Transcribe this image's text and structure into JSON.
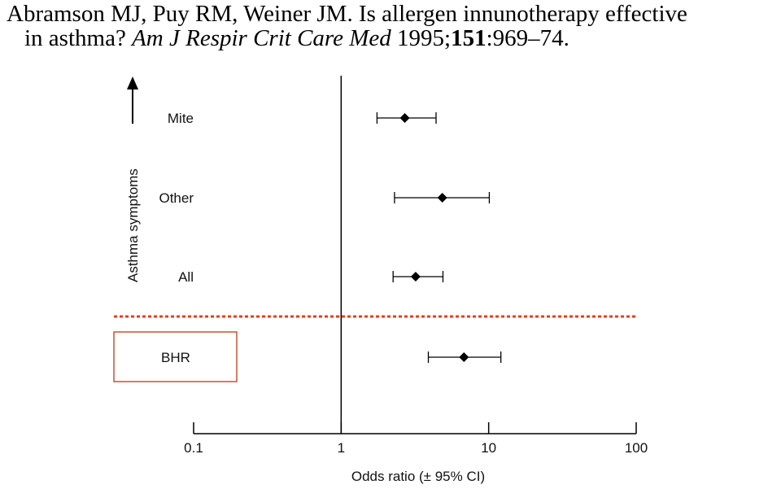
{
  "citation": {
    "authors_title": "Abramson MJ, Puy RM, Weiner JM. Is allergen innunotherapy effective",
    "line2_prefix": "in asthma? ",
    "journal": "Am J Respir Crit Care Med",
    "year_sep": " 1995;",
    "volume": "151",
    "pages": ":969–74."
  },
  "chart_data": {
    "type": "forest",
    "xlabel": "Odds ratio (± 95% CI)",
    "xscale": "log",
    "xlim": [
      0.1,
      100
    ],
    "xticks": [
      0.1,
      1,
      10,
      100
    ],
    "xtick_labels": [
      "0.1",
      "1",
      "10",
      "100"
    ],
    "reference_line": 1,
    "group_label": "Asthma symptoms",
    "divider_color": "#e0401e",
    "box_color": "#c8532e",
    "rows": [
      {
        "label": "Mite",
        "estimate": 2.7,
        "ci_low": 1.75,
        "ci_high": 4.4,
        "group": "Asthma symptoms"
      },
      {
        "label": "Other",
        "estimate": 4.85,
        "ci_low": 2.3,
        "ci_high": 10.1,
        "group": "Asthma symptoms"
      },
      {
        "label": "All",
        "estimate": 3.2,
        "ci_low": 2.25,
        "ci_high": 4.9,
        "group": "Asthma symptoms"
      },
      {
        "label": "BHR",
        "estimate": 6.8,
        "ci_low": 3.9,
        "ci_high": 12.1,
        "boxed": true
      }
    ]
  }
}
